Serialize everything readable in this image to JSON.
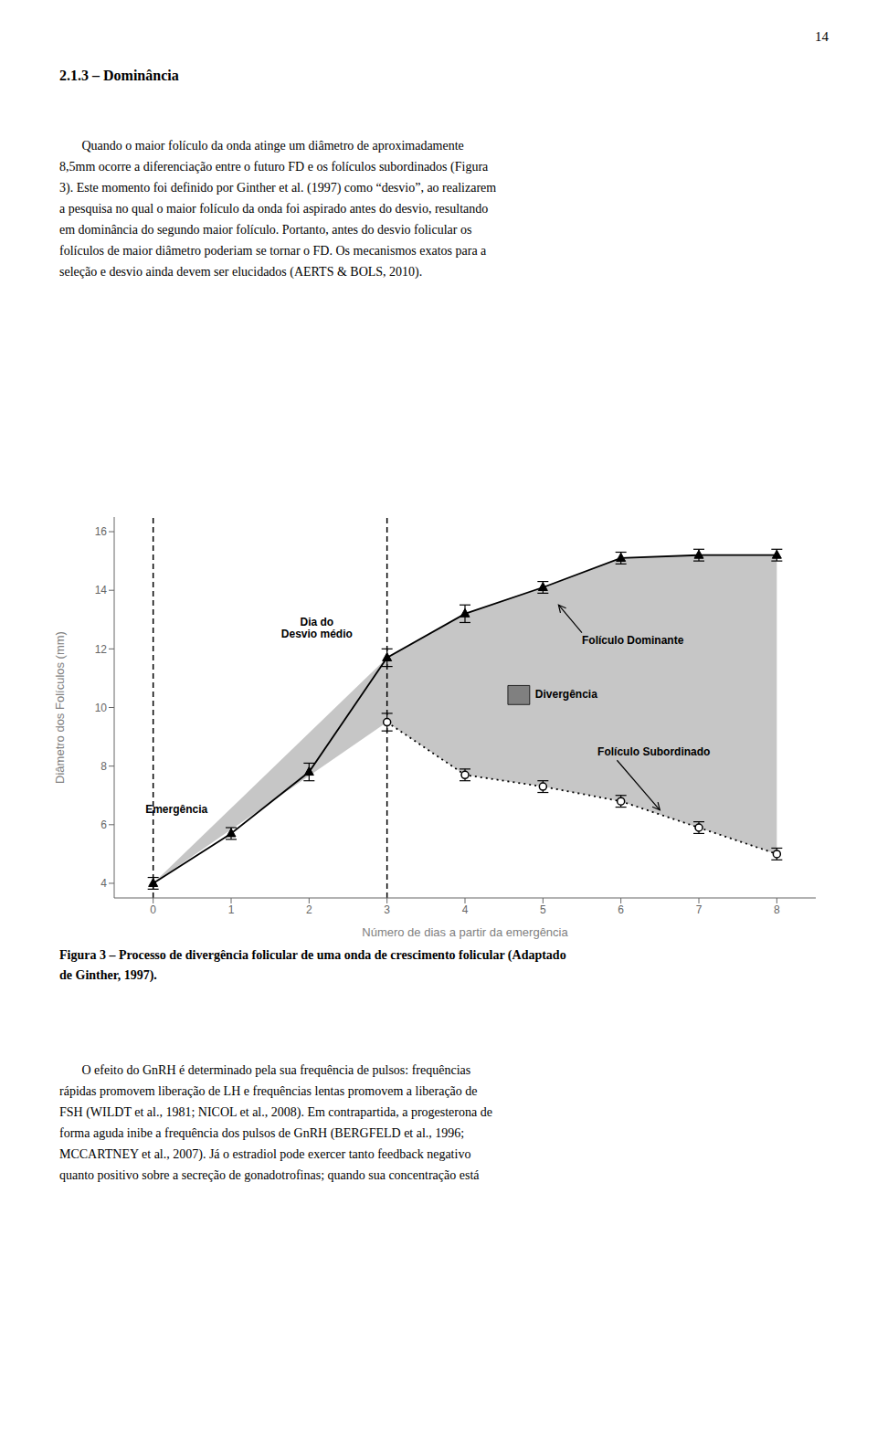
{
  "page_number": "14",
  "section_title": "2.1.3 – Dominância",
  "paragraph1": [
    "       Quando o maior folículo da onda atinge um diâmetro de aproximadamente",
    "8,5mm ocorre a diferenciação entre o futuro FD e os folículos subordinados (Figura",
    "3). Este momento foi definido por Ginther et al. (1997) como “desvio”, ao realizarem",
    "a pesquisa no qual o maior folículo da onda foi aspirado antes do desvio, resultando",
    "em dominância do segundo maior folículo. Portanto, antes do desvio folicular os",
    "folículos de maior diâmetro poderiam se tornar o FD. Os mecanismos exatos para a",
    "seleção e desvio ainda devem ser elucidados (AERTS & BOLS, 2010)."
  ],
  "caption": [
    "Figura 3 – Processo de divergência folicular de uma onda de crescimento folicular (Adaptado",
    "de Ginther, 1997)."
  ],
  "paragraph2": [
    "       O efeito do GnRH é determinado pela sua frequência de pulsos: frequências",
    "rápidas promovem liberação de LH e frequências lentas promovem a liberação de",
    "FSH (WILDT et al., 1981; NICOL et al., 2008). Em contrapartida, a progesterona de",
    "forma aguda inibe a frequência dos pulsos de GnRH (BERGFELD et al., 1996;",
    "MCCARTNEY et al., 2007). Já o estradiol pode exercer tanto feedback negativo",
    "quanto positivo sobre a secreção de gonadotrofinas; quando sua concentração está"
  ],
  "chart_data": {
    "type": "line",
    "xlabel": "Número de dias a partir da emergência",
    "ylabel": "Diâmetro dos Folículos (mm)",
    "xlim": [
      -0.5,
      8.5
    ],
    "ylim": [
      3.5,
      16.5
    ],
    "xticks": [
      0,
      1,
      2,
      3,
      4,
      5,
      6,
      7,
      8
    ],
    "yticks": [
      4,
      6,
      8,
      10,
      12,
      14,
      16
    ],
    "grid": false,
    "series": [
      {
        "name": "Folículo Dominante",
        "color": "#000000",
        "marker": "triangle",
        "line_style": "solid",
        "x": [
          0,
          1,
          2,
          3,
          4,
          5,
          6,
          7,
          8
        ],
        "values": [
          4.0,
          5.7,
          7.8,
          11.7,
          13.2,
          14.1,
          15.1,
          15.2,
          15.2
        ],
        "errors": [
          0.2,
          0.2,
          0.3,
          0.3,
          0.3,
          0.2,
          0.2,
          0.2,
          0.2
        ]
      },
      {
        "name": "Folículo Subordinado",
        "color": "#000000",
        "marker": "circle",
        "line_style": "dotted",
        "x": [
          3,
          4,
          5,
          6,
          7,
          8
        ],
        "values": [
          9.5,
          7.7,
          7.3,
          6.8,
          5.9,
          5.0
        ],
        "errors": [
          0.3,
          0.2,
          0.2,
          0.2,
          0.2,
          0.2
        ]
      }
    ],
    "divergence_area": {
      "name": "Divergência",
      "color": "#808080",
      "x": [
        0,
        3,
        4,
        5,
        6,
        7,
        8
      ],
      "lower": [
        4.0,
        9.5,
        7.7,
        7.3,
        6.8,
        5.9,
        5.0
      ],
      "upper": [
        4.0,
        11.7,
        13.2,
        14.1,
        15.1,
        15.2,
        15.2
      ]
    },
    "vlines": [
      {
        "x": 0,
        "label": "Emergência"
      },
      {
        "x": 3,
        "label": "Dia do\nDesvio médio"
      }
    ]
  }
}
